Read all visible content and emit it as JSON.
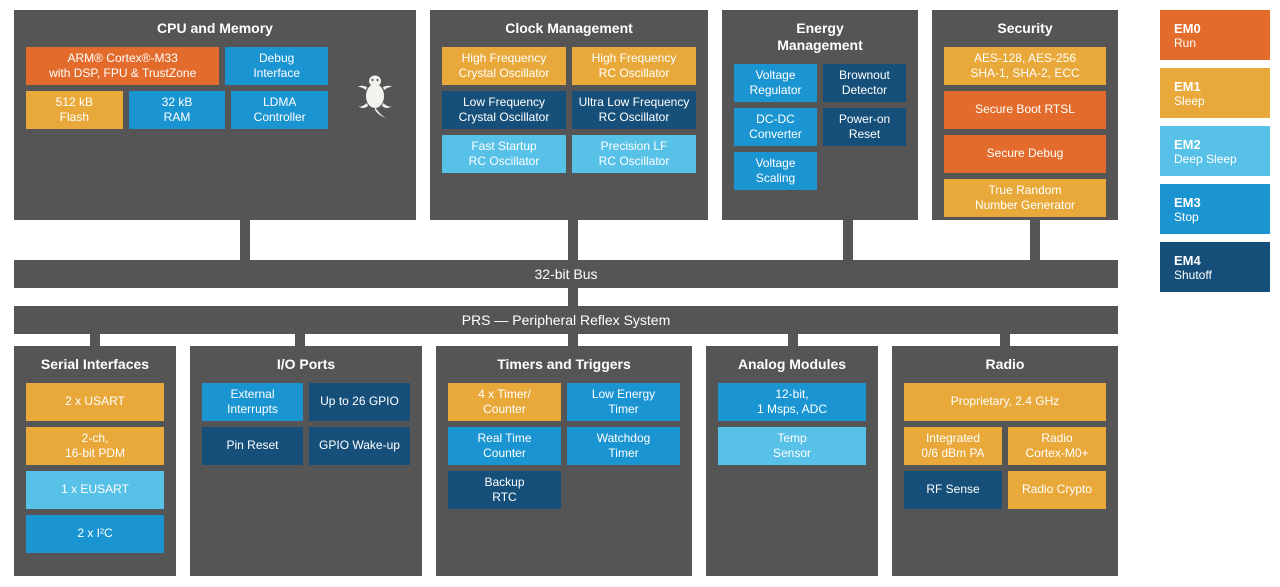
{
  "colors": {
    "panel": "#555555",
    "orange": "#e36c2c",
    "yellow": "#e8a93a",
    "ltblue": "#57c1e8",
    "blue": "#1b95d2",
    "navy": "#16507a",
    "text": "#ffffff"
  },
  "bus1": "32-bit Bus",
  "bus2": "PRS — Peripheral Reflex System",
  "legend": [
    {
      "code": "EM0",
      "label": "Run",
      "colorClass": "c-orange"
    },
    {
      "code": "EM1",
      "label": "Sleep",
      "colorClass": "c-yellow"
    },
    {
      "code": "EM2",
      "label": "Deep Sleep",
      "colorClass": "c-ltblue"
    },
    {
      "code": "EM3",
      "label": "Stop",
      "colorClass": "c-blue"
    },
    {
      "code": "EM4",
      "label": "Shutoff",
      "colorClass": "c-navy"
    }
  ],
  "sections": {
    "cpu": {
      "title": "CPU and Memory",
      "m33": "ARM® Cortex®-M33\nwith DSP, FPU & TrustZone",
      "debug": "Debug\nInterface",
      "flash": "512 kB\nFlash",
      "ram": "32 kB\nRAM",
      "ldma": "LDMA\nController"
    },
    "clock": {
      "title": "Clock Management",
      "hfxo": "High Frequency\nCrystal Oscillator",
      "hfrco": "High Frequency\nRC Oscillator",
      "lfxo": "Low Frequency\nCrystal Oscillator",
      "ulfrco": "Ultra Low Frequency\nRC Oscillator",
      "fsrco": "Fast Startup\nRC Oscillator",
      "plfrco": "Precision LF\nRC Oscillator"
    },
    "energy": {
      "title": "Energy\nManagement",
      "vreg": "Voltage\nRegulator",
      "bod": "Brownout\nDetector",
      "dcdc": "DC-DC\nConverter",
      "por": "Power-on\nReset",
      "vscale": "Voltage\nScaling"
    },
    "security": {
      "title": "Security",
      "crypto": "AES-128, AES-256\nSHA-1, SHA-2, ECC",
      "sboot": "Secure Boot RTSL",
      "sdbg": "Secure Debug",
      "trng": "True Random\nNumber Generator"
    },
    "serial": {
      "title": "Serial Interfaces",
      "usart": "2 x USART",
      "pdm": "2-ch,\n16-bit PDM",
      "eusart": "1 x EUSART",
      "i2c": "2 x I²C"
    },
    "io": {
      "title": "I/O Ports",
      "ext": "External\nInterrupts",
      "gpio": "Up to 26 GPIO",
      "pinrst": "Pin Reset",
      "gwake": "GPIO Wake-up"
    },
    "timers": {
      "title": "Timers and Triggers",
      "timer": "4 x Timer/\nCounter",
      "letim": "Low Energy\nTimer",
      "rtc": "Real Time\nCounter",
      "wdt": "Watchdog\nTimer",
      "burtc": "Backup\nRTC"
    },
    "analog": {
      "title": "Analog Modules",
      "adc": "12-bit,\n1 Msps, ADC",
      "temp": "Temp\nSensor"
    },
    "radio": {
      "title": "Radio",
      "prop": "Proprietary, 2.4 GHz",
      "pa": "Integrated\n0/6 dBm PA",
      "rcore": "Radio\nCortex-M0+",
      "rfsense": "RF Sense",
      "rcrypt": "Radio Crypto"
    }
  },
  "layout": {
    "topRowTop": 10,
    "topRowHeight": 210,
    "bus1Top": 260,
    "bus2Top": 305,
    "botRowTop": 345
  }
}
